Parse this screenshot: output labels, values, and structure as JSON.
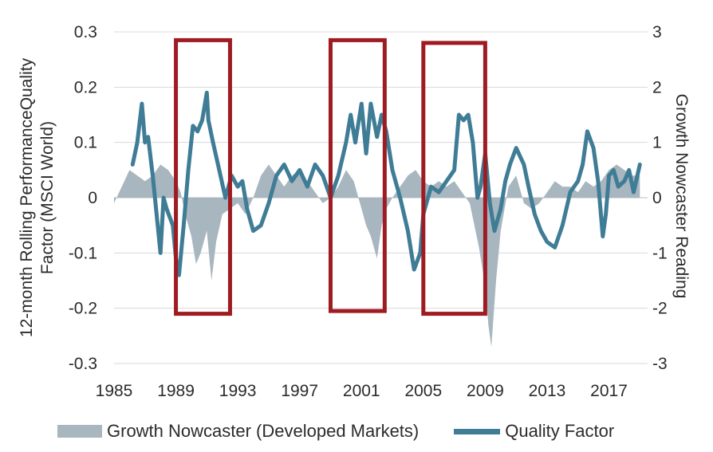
{
  "chart_data": {
    "type": "line",
    "left_ylabel": "12-month Rolling PerformanceQuality Factor (MSCI World)",
    "right_ylabel": "Growth Nowcaster Reading",
    "x_ticks": [
      "1985",
      "1989",
      "1993",
      "1997",
      "2001",
      "2005",
      "2009",
      "2013",
      "2017"
    ],
    "left_ylim": [
      -0.3,
      0.3
    ],
    "left_yticks": [
      "0.3",
      "0.2",
      "0.1",
      "0",
      "-0.1",
      "-0.2",
      "-0.3"
    ],
    "right_ylim": [
      -3,
      3
    ],
    "right_yticks": [
      "3",
      "2",
      "1",
      "0",
      "-1",
      "-2",
      "-3"
    ],
    "xlim": [
      1985,
      2019.5
    ],
    "grid": "horizontal",
    "legend_position": "bottom",
    "colors": {
      "nowcaster": "#a8b6c0",
      "quality": "#3f7c96",
      "highlight": "#9e1b22",
      "grid": "#d9d9d9"
    },
    "series": [
      {
        "name": "Growth Nowcaster (Developed Markets)",
        "type": "area",
        "axis": "right",
        "x": [
          1985.0,
          1985.5,
          1986.0,
          1986.5,
          1987.0,
          1987.5,
          1988.0,
          1988.5,
          1989.0,
          1989.3,
          1989.6,
          1990.0,
          1990.3,
          1990.6,
          1991.0,
          1991.3,
          1991.6,
          1992.0,
          1992.5,
          1993.0,
          1993.5,
          1994.0,
          1994.5,
          1995.0,
          1995.5,
          1996.0,
          1996.5,
          1997.0,
          1997.5,
          1998.0,
          1998.5,
          1999.0,
          1999.5,
          2000.0,
          2000.5,
          2001.0,
          2001.3,
          2001.6,
          2002.0,
          2002.3,
          2002.6,
          2003.0,
          2003.5,
          2004.0,
          2004.5,
          2005.0,
          2005.5,
          2006.0,
          2006.5,
          2007.0,
          2007.5,
          2008.0,
          2008.3,
          2008.6,
          2009.0,
          2009.2,
          2009.4,
          2009.7,
          2010.0,
          2010.5,
          2011.0,
          2011.5,
          2012.0,
          2012.5,
          2013.0,
          2013.5,
          2014.0,
          2014.5,
          2015.0,
          2015.5,
          2016.0,
          2016.5,
          2017.0,
          2017.5,
          2018.0,
          2018.5,
          2019.0
        ],
        "values": [
          -0.1,
          0.2,
          0.5,
          0.4,
          0.3,
          0.4,
          0.6,
          0.5,
          0.3,
          0.1,
          -0.3,
          -0.7,
          -1.2,
          -1.0,
          -0.6,
          -1.5,
          -0.8,
          -0.3,
          -0.2,
          -0.1,
          -0.3,
          0.0,
          0.4,
          0.6,
          0.4,
          0.2,
          0.4,
          0.5,
          0.3,
          0.1,
          -0.1,
          0.0,
          0.2,
          0.5,
          0.3,
          -0.2,
          -0.5,
          -0.7,
          -1.1,
          -0.5,
          -0.2,
          0.0,
          0.2,
          0.4,
          0.5,
          0.3,
          0.2,
          0.3,
          0.2,
          0.3,
          0.1,
          -0.1,
          -0.5,
          -0.9,
          -1.6,
          -2.3,
          -2.7,
          -1.5,
          -0.6,
          0.2,
          0.4,
          -0.1,
          -0.2,
          -0.1,
          0.1,
          0.3,
          0.2,
          0.2,
          0.1,
          0.3,
          0.2,
          0.3,
          0.5,
          0.6,
          0.5,
          0.4,
          0.4
        ]
      },
      {
        "name": "Quality Factor",
        "type": "line",
        "axis": "left",
        "x": [
          1986.2,
          1986.5,
          1986.8,
          1987.0,
          1987.2,
          1987.5,
          1988.0,
          1988.2,
          1988.4,
          1988.8,
          1989.0,
          1989.2,
          1989.5,
          1989.8,
          1990.1,
          1990.4,
          1990.7,
          1991.0,
          1991.1,
          1991.4,
          1991.8,
          1992.2,
          1992.6,
          1993.0,
          1993.3,
          1993.6,
          1994.0,
          1994.5,
          1995.0,
          1995.5,
          1996.0,
          1996.5,
          1997.0,
          1997.5,
          1998.0,
          1998.5,
          1999.0,
          1999.5,
          2000.0,
          2000.3,
          2000.6,
          2001.0,
          2001.3,
          2001.6,
          2002.0,
          2002.3,
          2002.6,
          2003.0,
          2003.5,
          2004.0,
          2004.4,
          2004.8,
          2005.0,
          2005.5,
          2006.0,
          2006.5,
          2007.0,
          2007.3,
          2007.6,
          2007.9,
          2008.2,
          2008.5,
          2008.7,
          2009.0,
          2009.3,
          2009.6,
          2010.0,
          2010.3,
          2010.6,
          2011.0,
          2011.5,
          2011.8,
          2012.2,
          2012.6,
          2013.0,
          2013.5,
          2014.0,
          2014.5,
          2015.0,
          2015.3,
          2015.6,
          2016.0,
          2016.3,
          2016.6,
          2016.8,
          2017.0,
          2017.3,
          2017.6,
          2018.0,
          2018.3,
          2018.6,
          2019.0
        ],
        "values": [
          0.06,
          0.1,
          0.17,
          0.1,
          0.11,
          0.04,
          -0.1,
          0.0,
          -0.02,
          -0.05,
          -0.11,
          -0.14,
          -0.05,
          0.05,
          0.13,
          0.12,
          0.14,
          0.19,
          0.14,
          0.1,
          0.05,
          -0.0,
          0.04,
          0.02,
          0.03,
          -0.02,
          -0.06,
          -0.05,
          -0.01,
          0.04,
          0.06,
          0.03,
          0.05,
          0.02,
          0.06,
          0.04,
          0.0,
          0.04,
          0.1,
          0.15,
          0.1,
          0.17,
          0.08,
          0.17,
          0.11,
          0.15,
          0.12,
          0.05,
          0.0,
          -0.06,
          -0.13,
          -0.1,
          -0.03,
          0.02,
          0.01,
          0.03,
          0.05,
          0.15,
          0.14,
          0.15,
          0.1,
          0.0,
          0.02,
          0.08,
          -0.01,
          -0.06,
          -0.02,
          0.03,
          0.06,
          0.09,
          0.06,
          0.02,
          -0.03,
          -0.06,
          -0.08,
          -0.09,
          -0.05,
          0.01,
          0.03,
          0.06,
          0.12,
          0.09,
          0.03,
          -0.07,
          -0.03,
          0.04,
          0.05,
          0.02,
          0.03,
          0.05,
          0.01,
          0.06
        ]
      }
    ],
    "highlights": [
      {
        "x0": 1989.0,
        "x1": 1992.5,
        "y0": 0.285,
        "y1": -0.21
      },
      {
        "x0": 1999.0,
        "x1": 2002.5,
        "y0": 0.285,
        "y1": -0.205
      },
      {
        "x0": 2005.0,
        "x1": 2009.0,
        "y0": 0.28,
        "y1": -0.21
      }
    ]
  },
  "legend": {
    "nowcaster_label": "Growth Nowcaster (Developed Markets)",
    "quality_label": "Quality Factor"
  }
}
